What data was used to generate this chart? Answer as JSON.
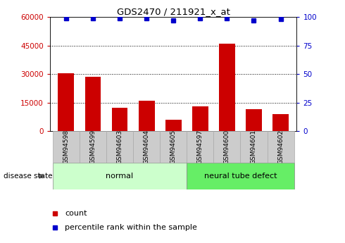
{
  "title": "GDS2470 / 211921_x_at",
  "samples": [
    "GSM94598",
    "GSM94599",
    "GSM94603",
    "GSM94604",
    "GSM94605",
    "GSM94597",
    "GSM94600",
    "GSM94601",
    "GSM94602"
  ],
  "counts": [
    30500,
    28500,
    12500,
    16000,
    6000,
    13000,
    46000,
    11500,
    9000
  ],
  "percentiles": [
    99,
    99,
    99,
    99,
    97,
    99,
    99,
    97,
    98
  ],
  "bar_color": "#cc0000",
  "dot_color": "#0000cc",
  "normal_group": [
    0,
    1,
    2,
    3,
    4
  ],
  "neural_group": [
    5,
    6,
    7,
    8
  ],
  "ylim_left": [
    0,
    60000
  ],
  "ylim_right": [
    0,
    100
  ],
  "yticks_left": [
    0,
    15000,
    30000,
    45000,
    60000
  ],
  "yticks_right": [
    0,
    25,
    50,
    75,
    100
  ],
  "grid_values": [
    15000,
    30000,
    45000
  ],
  "legend_count_label": "count",
  "legend_pct_label": "percentile rank within the sample",
  "disease_state_label": "disease state",
  "normal_label": "normal",
  "neural_label": "neural tube defect",
  "normal_bg": "#ccffcc",
  "neural_bg": "#66ee66",
  "tick_bg": "#cccccc",
  "tick_edge": "#aaaaaa"
}
